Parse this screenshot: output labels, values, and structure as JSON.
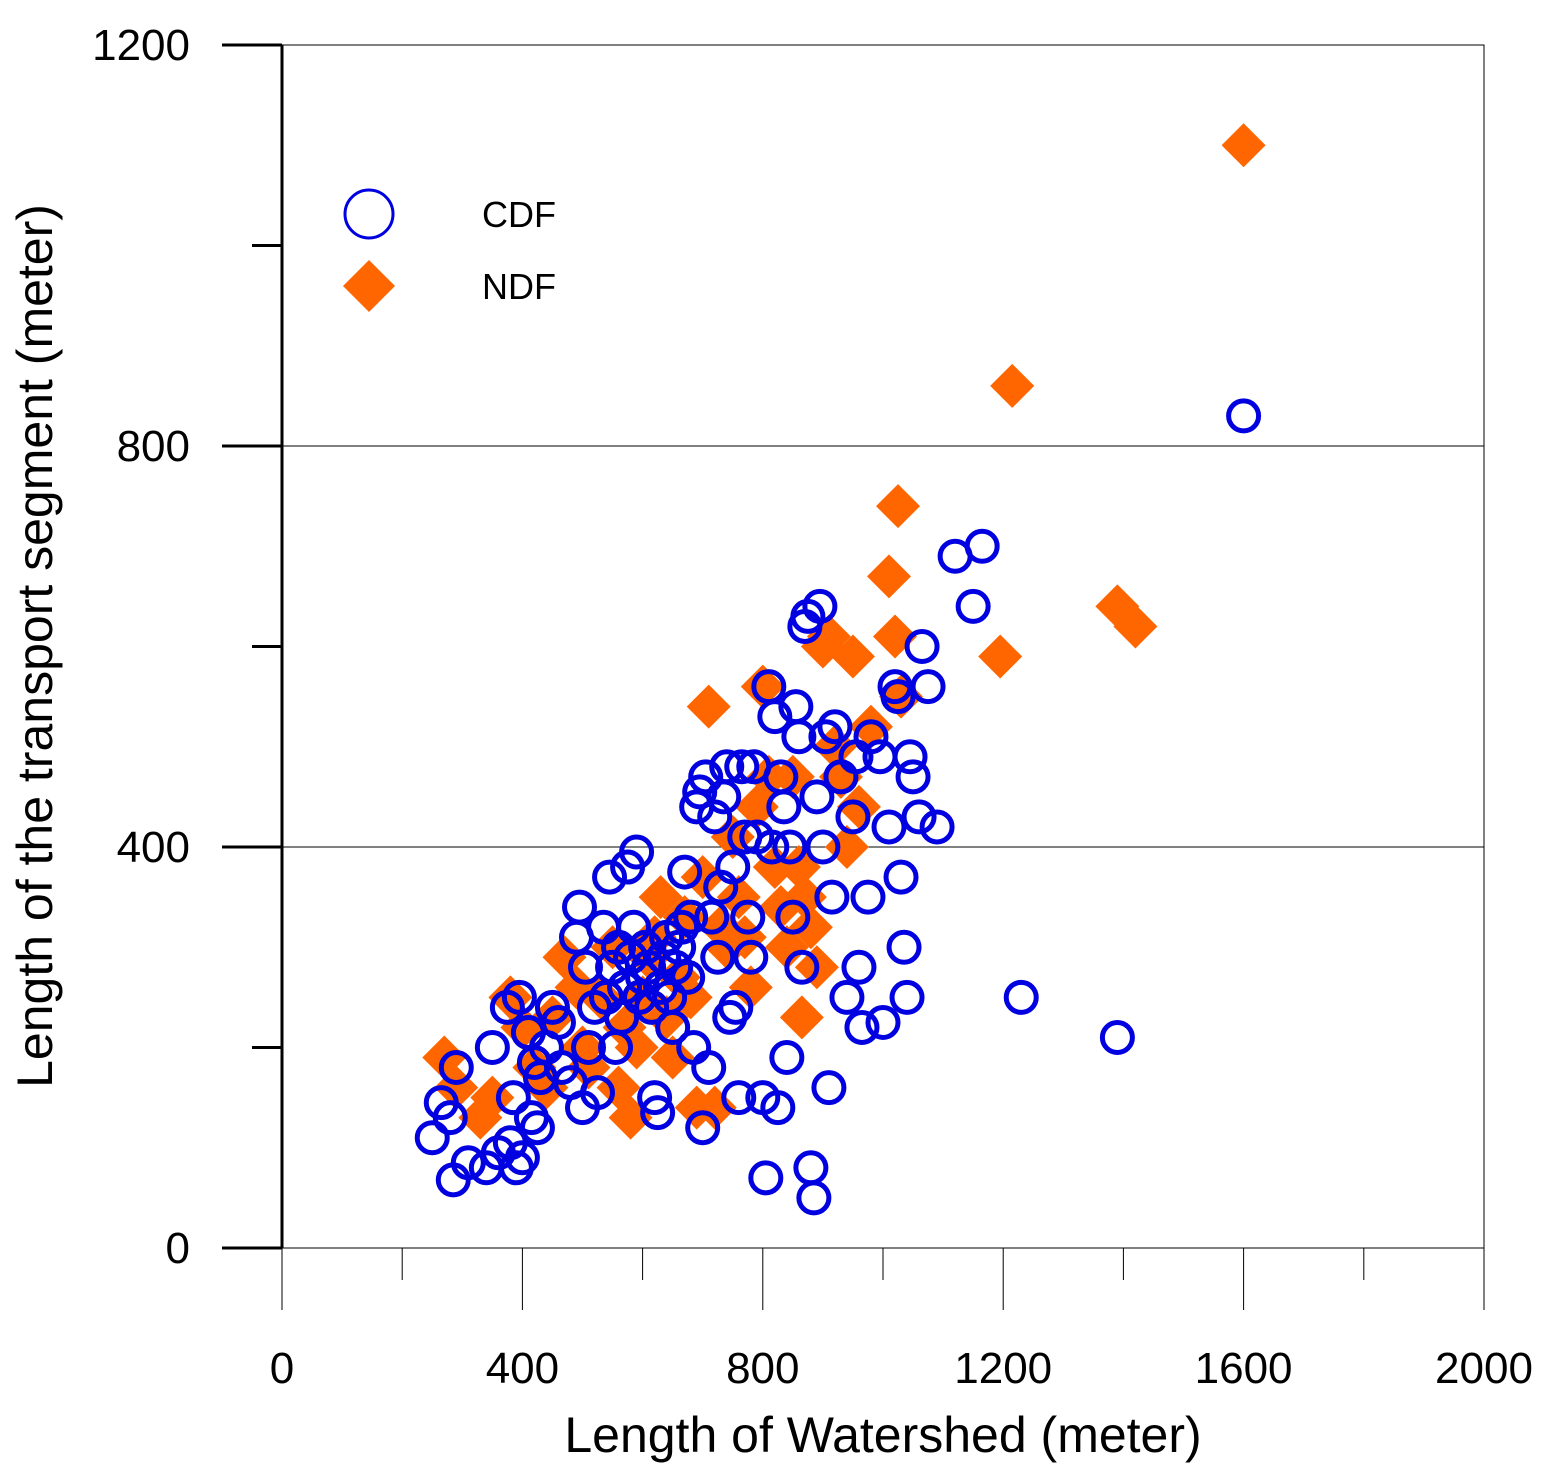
{
  "chart_data": {
    "type": "scatter",
    "title": "",
    "xlabel": "Length of Watershed (meter)",
    "ylabel": "Length of the transport segment (meter)",
    "xlim": [
      0,
      2000
    ],
    "ylim": [
      0,
      1200
    ],
    "xticks": [
      0,
      400,
      800,
      1200,
      1600,
      2000
    ],
    "yticks": [
      0,
      400,
      800,
      1200
    ],
    "grid": "horizontal",
    "legend_position": "top-left",
    "series": [
      {
        "name": "CDF",
        "marker": "open-circle",
        "color": "#0000e0",
        "points": [
          [
            250,
            110
          ],
          [
            265,
            145
          ],
          [
            280,
            130
          ],
          [
            285,
            68
          ],
          [
            290,
            180
          ],
          [
            310,
            85
          ],
          [
            340,
            80
          ],
          [
            350,
            200
          ],
          [
            360,
            95
          ],
          [
            375,
            240
          ],
          [
            380,
            105
          ],
          [
            385,
            150
          ],
          [
            390,
            80
          ],
          [
            395,
            250
          ],
          [
            400,
            90
          ],
          [
            410,
            215
          ],
          [
            415,
            130
          ],
          [
            420,
            185
          ],
          [
            425,
            120
          ],
          [
            430,
            170
          ],
          [
            440,
            200
          ],
          [
            450,
            240
          ],
          [
            460,
            225
          ],
          [
            465,
            180
          ],
          [
            480,
            165
          ],
          [
            490,
            310
          ],
          [
            495,
            340
          ],
          [
            500,
            140
          ],
          [
            505,
            280
          ],
          [
            510,
            200
          ],
          [
            520,
            240
          ],
          [
            525,
            155
          ],
          [
            535,
            320
          ],
          [
            540,
            250
          ],
          [
            545,
            370
          ],
          [
            550,
            280
          ],
          [
            555,
            200
          ],
          [
            560,
            300
          ],
          [
            565,
            230
          ],
          [
            570,
            260
          ],
          [
            575,
            380
          ],
          [
            580,
            290
          ],
          [
            585,
            320
          ],
          [
            590,
            395
          ],
          [
            595,
            250
          ],
          [
            600,
            270
          ],
          [
            605,
            300
          ],
          [
            610,
            280
          ],
          [
            615,
            240
          ],
          [
            620,
            150
          ],
          [
            625,
            135
          ],
          [
            630,
            260
          ],
          [
            635,
            290
          ],
          [
            640,
            310
          ],
          [
            645,
            250
          ],
          [
            650,
            220
          ],
          [
            655,
            280
          ],
          [
            660,
            300
          ],
          [
            665,
            320
          ],
          [
            670,
            375
          ],
          [
            675,
            270
          ],
          [
            680,
            330
          ],
          [
            685,
            200
          ],
          [
            690,
            440
          ],
          [
            695,
            455
          ],
          [
            700,
            120
          ],
          [
            705,
            470
          ],
          [
            710,
            180
          ],
          [
            715,
            330
          ],
          [
            720,
            430
          ],
          [
            725,
            290
          ],
          [
            730,
            360
          ],
          [
            735,
            450
          ],
          [
            740,
            480
          ],
          [
            745,
            230
          ],
          [
            750,
            380
          ],
          [
            755,
            240
          ],
          [
            760,
            150
          ],
          [
            765,
            480
          ],
          [
            770,
            410
          ],
          [
            775,
            330
          ],
          [
            780,
            290
          ],
          [
            785,
            480
          ],
          [
            790,
            410
          ],
          [
            800,
            150
          ],
          [
            805,
            70
          ],
          [
            810,
            560
          ],
          [
            815,
            400
          ],
          [
            820,
            530
          ],
          [
            825,
            140
          ],
          [
            830,
            470
          ],
          [
            835,
            440
          ],
          [
            840,
            190
          ],
          [
            845,
            400
          ],
          [
            850,
            330
          ],
          [
            855,
            540
          ],
          [
            860,
            510
          ],
          [
            865,
            280
          ],
          [
            870,
            620
          ],
          [
            875,
            630
          ],
          [
            880,
            80
          ],
          [
            885,
            50
          ],
          [
            890,
            450
          ],
          [
            895,
            640
          ],
          [
            900,
            400
          ],
          [
            905,
            510
          ],
          [
            910,
            160
          ],
          [
            915,
            350
          ],
          [
            920,
            520
          ],
          [
            930,
            470
          ],
          [
            940,
            250
          ],
          [
            950,
            430
          ],
          [
            955,
            490
          ],
          [
            960,
            280
          ],
          [
            965,
            220
          ],
          [
            975,
            350
          ],
          [
            980,
            510
          ],
          [
            995,
            490
          ],
          [
            1000,
            225
          ],
          [
            1010,
            420
          ],
          [
            1020,
            560
          ],
          [
            1025,
            550
          ],
          [
            1030,
            370
          ],
          [
            1035,
            300
          ],
          [
            1040,
            250
          ],
          [
            1045,
            490
          ],
          [
            1050,
            470
          ],
          [
            1060,
            430
          ],
          [
            1065,
            600
          ],
          [
            1075,
            560
          ],
          [
            1090,
            420
          ],
          [
            1120,
            690
          ],
          [
            1150,
            640
          ],
          [
            1165,
            700
          ],
          [
            1230,
            250
          ],
          [
            1390,
            210
          ],
          [
            1600,
            830
          ]
        ]
      },
      {
        "name": "NDF",
        "marker": "filled-diamond",
        "color": "#ff6600",
        "points": [
          [
            270,
            190
          ],
          [
            290,
            160
          ],
          [
            330,
            130
          ],
          [
            350,
            150
          ],
          [
            380,
            250
          ],
          [
            400,
            220
          ],
          [
            420,
            180
          ],
          [
            440,
            160
          ],
          [
            450,
            230
          ],
          [
            470,
            290
          ],
          [
            490,
            260
          ],
          [
            500,
            200
          ],
          [
            510,
            180
          ],
          [
            530,
            250
          ],
          [
            550,
            300
          ],
          [
            560,
            160
          ],
          [
            570,
            220
          ],
          [
            580,
            130
          ],
          [
            590,
            200
          ],
          [
            600,
            250
          ],
          [
            610,
            290
          ],
          [
            620,
            310
          ],
          [
            630,
            350
          ],
          [
            640,
            230
          ],
          [
            650,
            190
          ],
          [
            660,
            270
          ],
          [
            670,
            330
          ],
          [
            680,
            250
          ],
          [
            690,
            140
          ],
          [
            700,
            370
          ],
          [
            710,
            540
          ],
          [
            720,
            140
          ],
          [
            730,
            320
          ],
          [
            740,
            300
          ],
          [
            750,
            410
          ],
          [
            760,
            350
          ],
          [
            770,
            310
          ],
          [
            780,
            260
          ],
          [
            790,
            440
          ],
          [
            800,
            560
          ],
          [
            810,
            470
          ],
          [
            820,
            380
          ],
          [
            830,
            340
          ],
          [
            840,
            300
          ],
          [
            850,
            470
          ],
          [
            860,
            380
          ],
          [
            865,
            230
          ],
          [
            870,
            350
          ],
          [
            880,
            320
          ],
          [
            890,
            280
          ],
          [
            900,
            600
          ],
          [
            910,
            610
          ],
          [
            920,
            500
          ],
          [
            930,
            470
          ],
          [
            940,
            400
          ],
          [
            950,
            590
          ],
          [
            960,
            440
          ],
          [
            980,
            520
          ],
          [
            1010,
            670
          ],
          [
            1020,
            610
          ],
          [
            1025,
            740
          ],
          [
            1030,
            550
          ],
          [
            1195,
            590
          ],
          [
            1215,
            860
          ],
          [
            1390,
            640
          ],
          [
            1420,
            620
          ],
          [
            1600,
            1100
          ]
        ]
      }
    ]
  }
}
